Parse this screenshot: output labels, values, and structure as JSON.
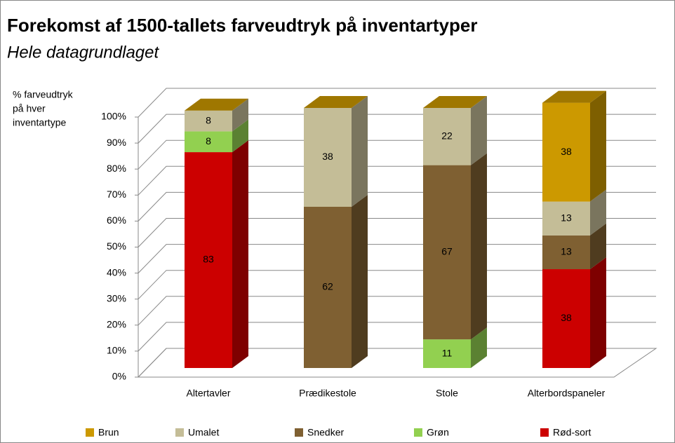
{
  "chart_data": {
    "type": "bar3d_stacked",
    "title": "Forekomst af 1500-tallets farveudtryk på inventartyper",
    "subtitle": "Hele datagrundlaget",
    "y_label": [
      "% farveudtryk",
      "på hver",
      "inventartype"
    ],
    "categories": [
      "Altertavler",
      "Prædikestole",
      "Stole",
      "Alterbordspaneler"
    ],
    "series": [
      {
        "name": "Brun",
        "color": "#cc9900",
        "values": [
          null,
          null,
          null,
          38
        ]
      },
      {
        "name": "Umalet",
        "color": "#c4bd97",
        "values": [
          8,
          38,
          22,
          13
        ]
      },
      {
        "name": "Snedker",
        "color": "#7f6032",
        "values": [
          null,
          62,
          67,
          13
        ]
      },
      {
        "name": "Grøn",
        "color": "#92d050",
        "values": [
          8,
          null,
          11,
          null
        ]
      },
      {
        "name": "Rød-sort",
        "color": "#cc0000",
        "values": [
          83,
          null,
          null,
          38
        ]
      }
    ],
    "ylim": [
      0,
      100
    ],
    "yticks": [
      {
        "value": 0,
        "label": "0%"
      },
      {
        "value": 10,
        "label": "10%"
      },
      {
        "value": 20,
        "label": "20%"
      },
      {
        "value": 30,
        "label": "30%"
      },
      {
        "value": 40,
        "label": "40%"
      },
      {
        "value": 50,
        "label": "50%"
      },
      {
        "value": 60,
        "label": "60%"
      },
      {
        "value": 70,
        "label": "70%"
      },
      {
        "value": 80,
        "label": "80%"
      },
      {
        "value": 90,
        "label": "90%"
      },
      {
        "value": 100,
        "label": "100%"
      }
    ],
    "grid": true,
    "legend": "bottom"
  }
}
